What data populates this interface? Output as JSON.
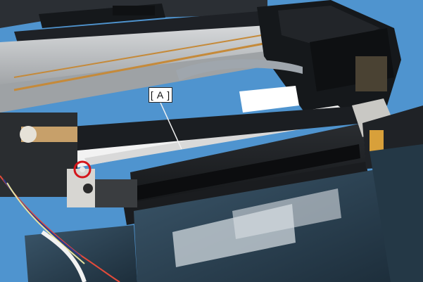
{
  "callout": {
    "label": "[ A ]"
  },
  "colors": {
    "background": "#4f94cf",
    "chassis_dark": "#1c1f24",
    "rail_metal": "#b9bcbf",
    "ink_tank": "#2a3e4f",
    "marker_ring": "#d4161c"
  }
}
